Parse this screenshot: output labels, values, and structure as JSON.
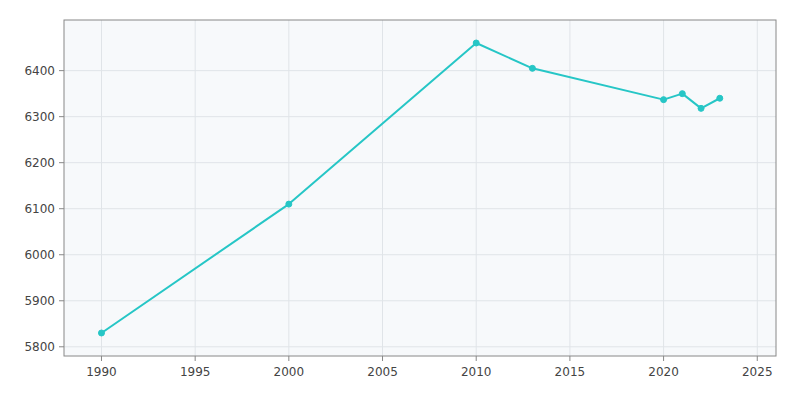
{
  "chart_data": {
    "type": "line",
    "x": [
      1990,
      2000,
      2010,
      2013,
      2020,
      2021,
      2022,
      2023
    ],
    "values": [
      5830,
      6110,
      6460,
      6405,
      6337,
      6350,
      6318,
      6340
    ],
    "color": "#26c6c6",
    "marker": "circle",
    "xlim": [
      1988,
      2026
    ],
    "ylim": [
      5780,
      6510
    ],
    "xticks": [
      1990,
      1995,
      2000,
      2005,
      2010,
      2015,
      2020,
      2025
    ],
    "yticks": [
      5800,
      5900,
      6000,
      6100,
      6200,
      6300,
      6400
    ],
    "grid": true
  }
}
